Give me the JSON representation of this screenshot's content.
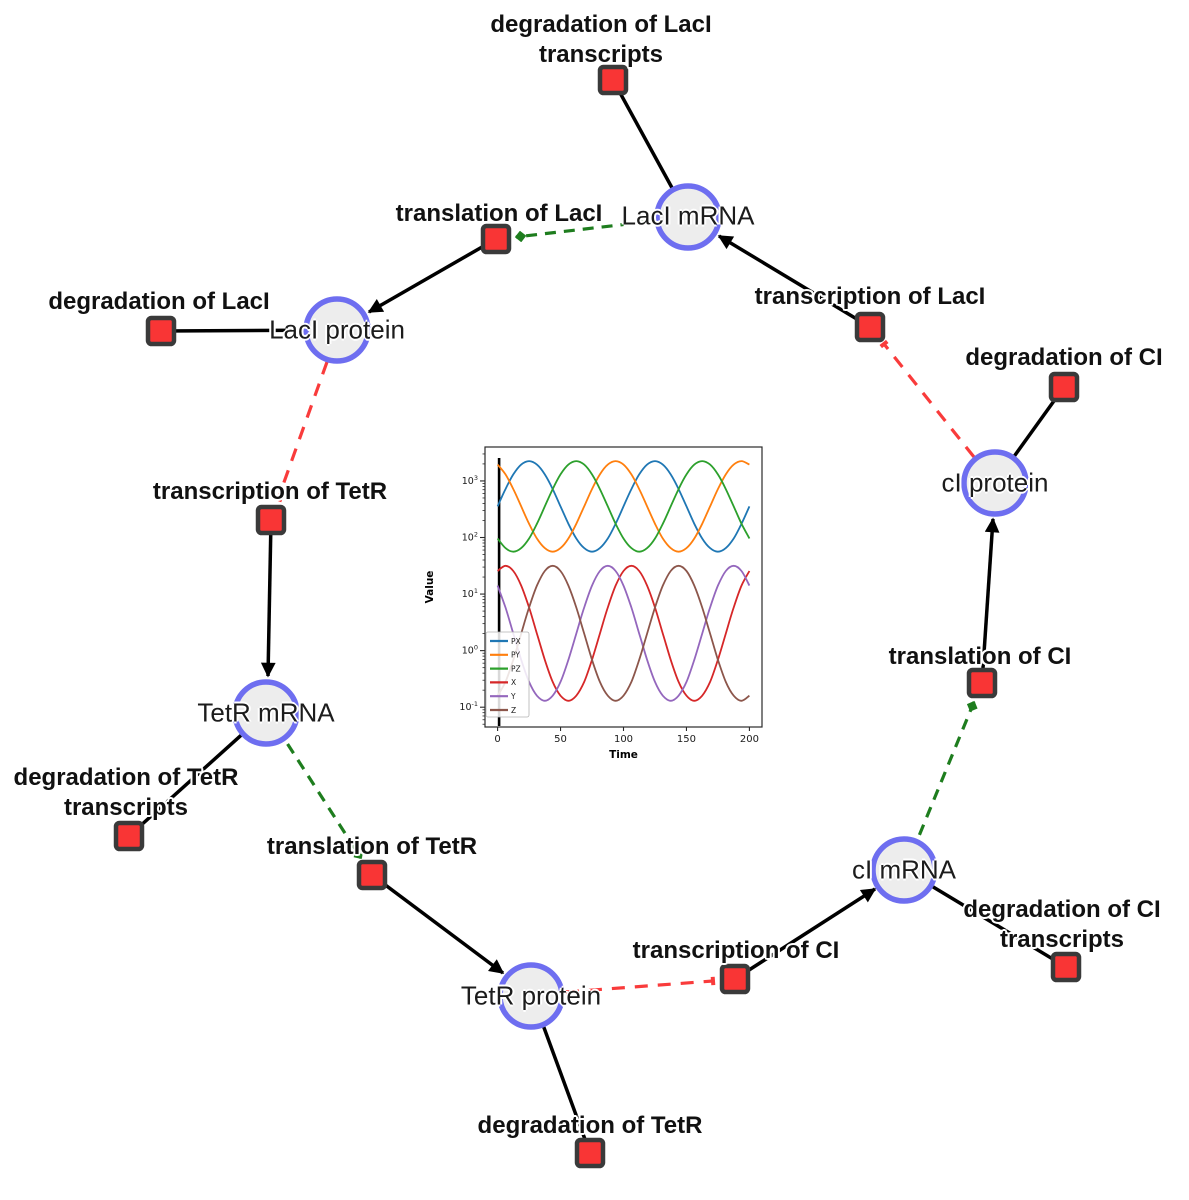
{
  "diagram": {
    "colors": {
      "species_fill": "#ededed",
      "species_border": "#6e6ef0",
      "reaction_fill": "#f93535",
      "reaction_border": "#3a3a3a",
      "product_edge": "#000000",
      "modifier_edge": "#1e7d1e",
      "inhibition_edge": "#f93b3b"
    },
    "species": [
      {
        "label": "LacI mRNA"
      },
      {
        "label": "LacI protein"
      },
      {
        "label": "cI protein"
      },
      {
        "label": "TetR mRNA"
      },
      {
        "label": "TetR protein"
      },
      {
        "label": "cI mRNA"
      }
    ],
    "reactions": [
      {
        "label": "degradation of LacI transcripts"
      },
      {
        "label": "translation of LacI"
      },
      {
        "label": "degradation of LacI"
      },
      {
        "label": "transcription of LacI"
      },
      {
        "label": "degradation of CI"
      },
      {
        "label": "transcription of TetR"
      },
      {
        "label": "degradation of TetR transcripts"
      },
      {
        "label": "translation of TetR"
      },
      {
        "label": "degradation of TetR"
      },
      {
        "label": "transcription of CI"
      },
      {
        "label": "degradation of CI transcripts"
      },
      {
        "label": "translation of CI"
      }
    ],
    "edges": [
      {
        "from": "LacI mRNA",
        "to": "degradation of LacI transcripts",
        "type": "reactant"
      },
      {
        "from": "transcription of LacI",
        "to": "LacI mRNA",
        "type": "product"
      },
      {
        "from": "translation of LacI",
        "to": "LacI protein",
        "type": "product"
      },
      {
        "from": "LacI protein",
        "to": "degradation of LacI",
        "type": "reactant"
      },
      {
        "from": "transcription of TetR",
        "to": "TetR mRNA",
        "type": "product"
      },
      {
        "from": "TetR mRNA",
        "to": "degradation of TetR transcripts",
        "type": "reactant"
      },
      {
        "from": "translation of TetR",
        "to": "TetR protein",
        "type": "product"
      },
      {
        "from": "TetR protein",
        "to": "degradation of TetR",
        "type": "reactant"
      },
      {
        "from": "transcription of CI",
        "to": "cI mRNA",
        "type": "product"
      },
      {
        "from": "cI mRNA",
        "to": "degradation of CI transcripts",
        "type": "reactant"
      },
      {
        "from": "translation of CI",
        "to": "cI protein",
        "type": "product"
      },
      {
        "from": "cI protein",
        "to": "degradation of CI",
        "type": "reactant"
      },
      {
        "from": "LacI mRNA",
        "to": "translation of LacI",
        "type": "modifier"
      },
      {
        "from": "TetR mRNA",
        "to": "translation of TetR",
        "type": "modifier"
      },
      {
        "from": "cI mRNA",
        "to": "translation of CI",
        "type": "modifier"
      },
      {
        "from": "LacI protein",
        "to": "transcription of TetR",
        "type": "inhibition"
      },
      {
        "from": "cI protein",
        "to": "transcription of LacI",
        "type": "inhibition"
      },
      {
        "from": "TetR protein",
        "to": "transcription of CI",
        "type": "inhibition"
      }
    ]
  },
  "chart_data": {
    "type": "line",
    "title": "",
    "xlabel": "Time",
    "ylabel": "Value",
    "y_scale": "log",
    "x_ticks": [
      0,
      50,
      100,
      150,
      200
    ],
    "y_tick_exponents": [
      -1,
      0,
      1,
      2,
      3
    ],
    "xlim": [
      -10,
      210
    ],
    "ylim_log10": [
      -1.35,
      3.6
    ],
    "grid": false,
    "legend_position": "lower left",
    "initial_spike_x": 1.2,
    "x": [
      0,
      6.25,
      12.5,
      18.75,
      25,
      31.25,
      37.5,
      43.75,
      50,
      56.25,
      62.5,
      68.75,
      75,
      81.25,
      87.5,
      93.75,
      100,
      106.25,
      112.5,
      118.75,
      125,
      131.25,
      137.5,
      143.75,
      150,
      156.25,
      162.5,
      168.75,
      175,
      181.25,
      187.5,
      193.75,
      200
    ],
    "series": [
      {
        "name": "PX",
        "color": "#1f77b4",
        "values": [
          355,
          718,
          1306,
          1945,
          2239,
          1945,
          1306,
          718,
          355,
          175,
          96,
          65,
          56,
          65,
          96,
          175,
          355,
          718,
          1306,
          1945,
          2239,
          1945,
          1306,
          718,
          355,
          175,
          96,
          65,
          56,
          65,
          96,
          175,
          355
        ]
      },
      {
        "name": "PY",
        "color": "#ff7f0e",
        "values": [
          1945,
          1306,
          718,
          355,
          175,
          96,
          65,
          56,
          65,
          96,
          175,
          355,
          718,
          1306,
          1945,
          2239,
          1945,
          1306,
          718,
          355,
          175,
          96,
          65,
          56,
          65,
          96,
          175,
          355,
          718,
          1306,
          1945,
          2239,
          1945
        ]
      },
      {
        "name": "PZ",
        "color": "#2ca02c",
        "values": [
          96,
          65,
          56,
          65,
          96,
          175,
          355,
          718,
          1306,
          1945,
          2239,
          1945,
          1306,
          718,
          355,
          175,
          96,
          65,
          56,
          65,
          96,
          175,
          355,
          718,
          1306,
          1945,
          2239,
          1945,
          1306,
          718,
          355,
          175,
          96
        ]
      },
      {
        "name": "X",
        "color": "#d62728",
        "values": [
          25.6,
          31.6,
          25.6,
          14.1,
          5.8,
          2.0,
          0.69,
          0.28,
          0.16,
          0.13,
          0.16,
          0.28,
          0.69,
          2.0,
          5.8,
          14.1,
          25.6,
          31.6,
          25.6,
          14.1,
          5.8,
          2.0,
          0.69,
          0.28,
          0.16,
          0.13,
          0.16,
          0.28,
          0.69,
          2.0,
          5.8,
          14.1,
          25.6
        ]
      },
      {
        "name": "Y",
        "color": "#9467bd",
        "values": [
          14.1,
          5.8,
          2.0,
          0.69,
          0.28,
          0.16,
          0.13,
          0.16,
          0.28,
          0.69,
          2.0,
          5.8,
          14.1,
          25.6,
          31.6,
          25.6,
          14.1,
          5.8,
          2.0,
          0.69,
          0.28,
          0.16,
          0.13,
          0.16,
          0.28,
          0.69,
          2.0,
          5.8,
          14.1,
          25.6,
          31.6,
          25.6,
          14.1
        ]
      },
      {
        "name": "Z",
        "color": "#8c564b",
        "values": [
          0.16,
          0.28,
          0.69,
          2.0,
          5.8,
          14.1,
          25.6,
          31.6,
          25.6,
          14.1,
          5.8,
          2.0,
          0.69,
          0.28,
          0.16,
          0.13,
          0.16,
          0.28,
          0.69,
          2.0,
          5.8,
          14.1,
          25.6,
          31.6,
          25.6,
          14.1,
          5.8,
          2.0,
          0.69,
          0.28,
          0.16,
          0.13,
          0.16
        ]
      }
    ]
  }
}
